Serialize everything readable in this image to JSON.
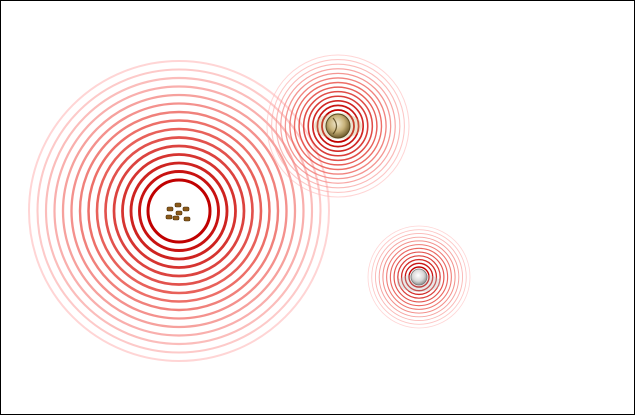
{
  "scene": {
    "background": "#ffffff",
    "border_color": "#000000",
    "ring_colors": {
      "inner": "#c00000",
      "mid": "#e8453c",
      "outer": "#ffb3b3"
    }
  },
  "objects": [
    {
      "name": "large-ripple-target",
      "kind": "pile-of-small-pellets",
      "icon": "pellet-cluster-icon",
      "pellet_color": "#8b5a1a",
      "ring_count": 15,
      "interactive": true
    },
    {
      "name": "medium-ripple-target",
      "kind": "gold-coin",
      "icon": "gold-coin-icon",
      "coin_color": "#c8b27a",
      "ring_count": 13,
      "interactive": true
    },
    {
      "name": "small-ripple-target",
      "kind": "silver-coin",
      "icon": "silver-coin-icon",
      "coin_color": "#d8d8d8",
      "ring_count": 12,
      "interactive": true
    }
  ]
}
